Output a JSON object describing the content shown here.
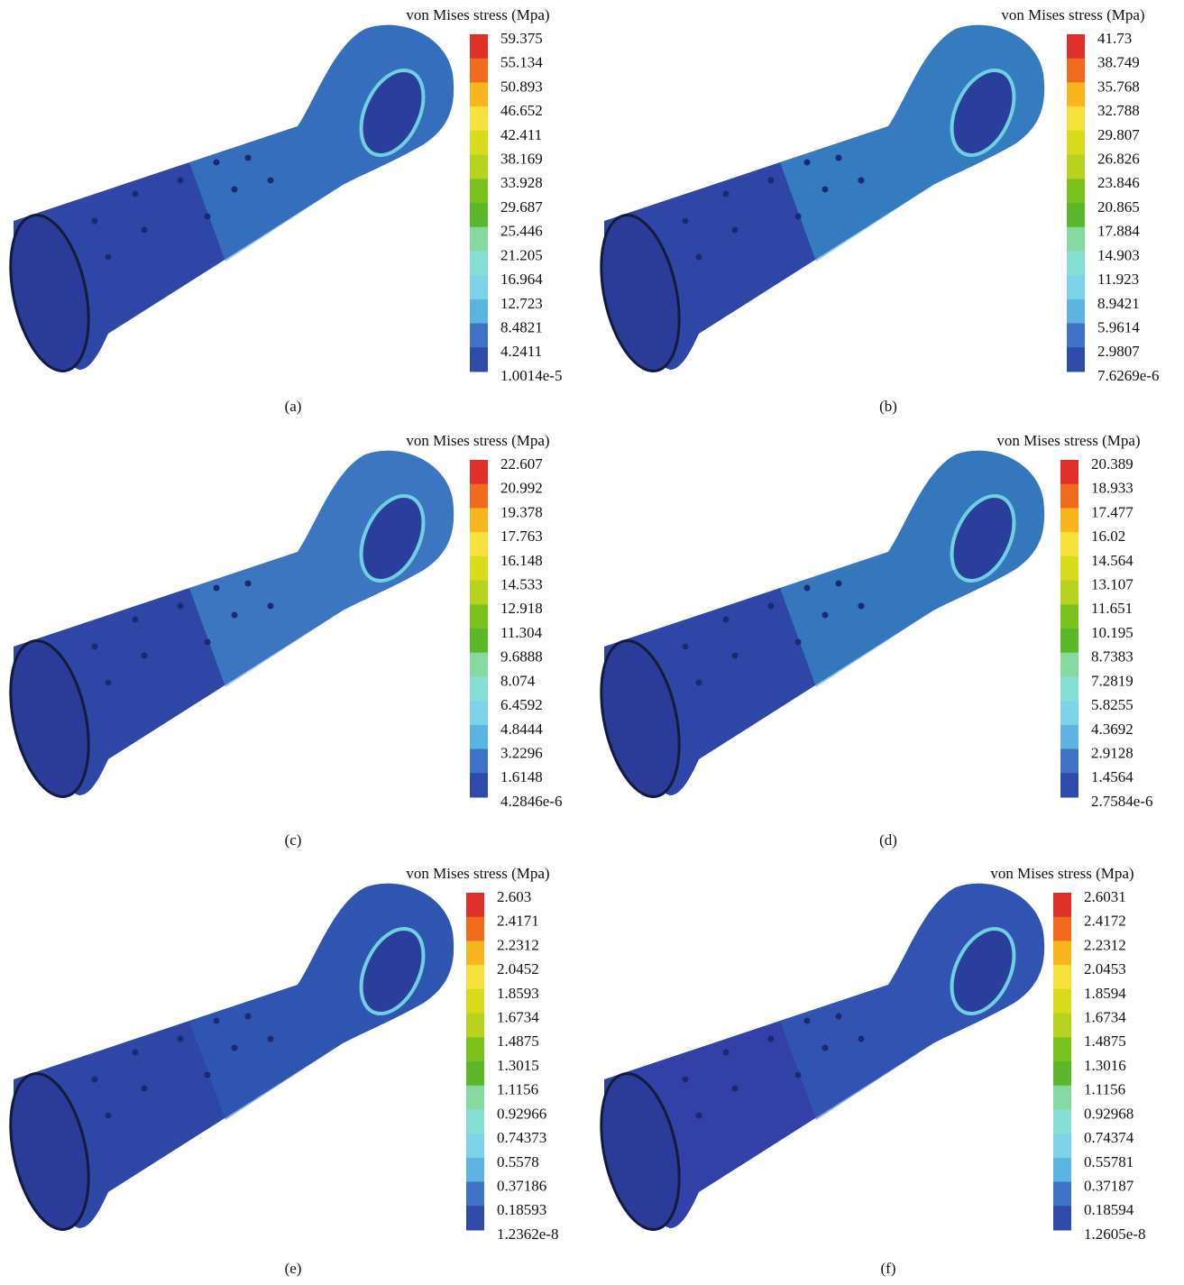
{
  "panels": [
    {
      "legend_title": "von Mises stress (Mpa)",
      "legend_labels": [
        "59.375",
        "55.134",
        "50.893",
        "46.652",
        "42.411",
        "38.169",
        "33.928",
        "29.687",
        "25.446",
        "21.205",
        "16.964",
        "12.723",
        "8.4821",
        "4.2411",
        "1.0014e-5"
      ],
      "caption": "(a)"
    },
    {
      "legend_title": "von Mises stress (Mpa)",
      "legend_labels": [
        "41.73",
        "38.749",
        "35.768",
        "32.788",
        "29.807",
        "26.826",
        "23.846",
        "20.865",
        "17.884",
        "14.903",
        "11.923",
        "8.9421",
        "5.9614",
        "2.9807",
        "7.6269e-6"
      ],
      "caption": "(b)"
    },
    {
      "legend_title": "von Mises stress (Mpa)",
      "legend_labels": [
        "22.607",
        "20.992",
        "19.378",
        "17.763",
        "16.148",
        "14.533",
        "12.918",
        "11.304",
        "9.6888",
        "8.074",
        "6.4592",
        "4.8444",
        "3.2296",
        "1.6148",
        "4.2846e-6"
      ],
      "caption": "(c)"
    },
    {
      "legend_title": "von Mises stress (Mpa)",
      "legend_labels": [
        "20.389",
        "18.933",
        "17.477",
        "16.02",
        "14.564",
        "13.107",
        "11.651",
        "10.195",
        "8.7383",
        "7.2819",
        "5.8255",
        "4.3692",
        "2.9128",
        "1.4564",
        "2.7584e-6"
      ],
      "caption": "(d)"
    },
    {
      "legend_title": "von Mises stress (Mpa)",
      "legend_labels": [
        "2.603",
        "2.4171",
        "2.2312",
        "2.0452",
        "1.8593",
        "1.6734",
        "1.4875",
        "1.3015",
        "1.1156",
        "0.92966",
        "0.74373",
        "0.5578",
        "0.37186",
        "0.18593",
        "1.2362e-8"
      ],
      "caption": "(e)"
    },
    {
      "legend_title": "von Mises stress (Mpa)",
      "legend_labels": [
        "2.6031",
        "2.4172",
        "2.2312",
        "2.0453",
        "1.8594",
        "1.6734",
        "1.4875",
        "1.3016",
        "1.1156",
        "0.92968",
        "0.74374",
        "0.55781",
        "0.37187",
        "0.18594",
        "1.2605e-8"
      ],
      "caption": "(f)"
    }
  ]
}
